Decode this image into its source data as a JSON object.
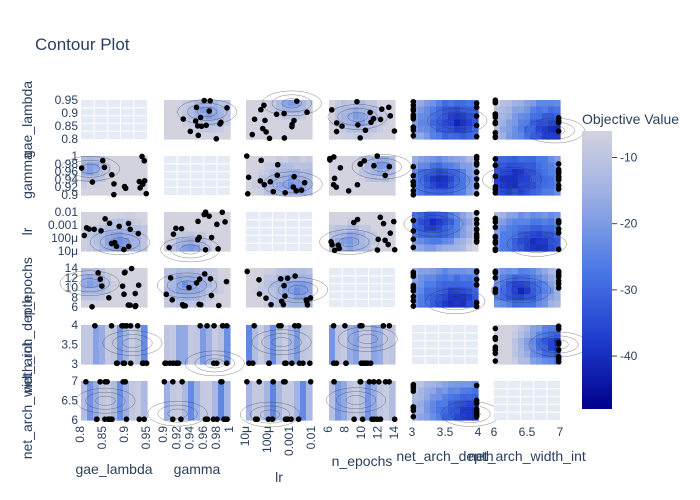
{
  "chart_data": {
    "type": "contour",
    "title": "Contour Plot",
    "params": [
      {
        "name": "gae_lambda",
        "ticks": [
          "0.8",
          "0.85",
          "0.9",
          "0.95"
        ],
        "range": [
          0.78,
          0.98
        ]
      },
      {
        "name": "gamma",
        "ticks": [
          "0.9",
          "0.92",
          "0.94",
          "0.96",
          "0.98",
          "1"
        ],
        "range": [
          0.895,
          1.0
        ]
      },
      {
        "name": "lr",
        "ticks": [
          "10μ",
          "100μ",
          "0.001",
          "0.01"
        ],
        "range": [
          -5.2,
          -1.6
        ],
        "scale": "log"
      },
      {
        "name": "n_epochs",
        "ticks": [
          "6",
          "8",
          "10",
          "12",
          "14"
        ],
        "range": [
          5.6,
          14.6
        ]
      },
      {
        "name": "net_arch_depth",
        "ticks": [
          "3",
          "3.5",
          "4"
        ],
        "range": [
          2.95,
          4.05
        ]
      },
      {
        "name": "net_arch_width_int",
        "ticks": [
          "6",
          "6.5",
          "7"
        ],
        "range": [
          5.95,
          7.05
        ]
      }
    ],
    "colorbar": {
      "title": "Objective Value",
      "range": [
        -48,
        -6
      ],
      "ticks": [
        "-10",
        "-20",
        "-30",
        "-40"
      ],
      "tick_values": [
        -10,
        -20,
        -30,
        -40
      ],
      "colors": [
        "#00008b",
        "#1f3ccf",
        "#4a78e6",
        "#9fb1e3",
        "#d3d3e0"
      ]
    }
  }
}
